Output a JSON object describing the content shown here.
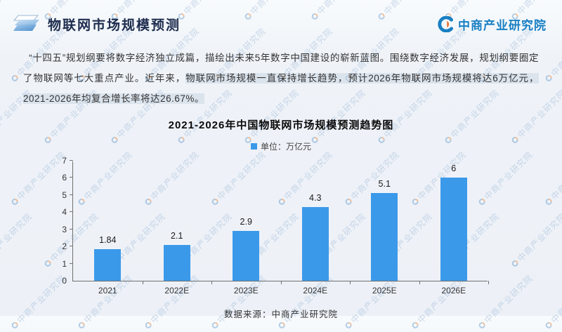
{
  "header": {
    "title": "物联网市场规模预测",
    "brand": "中商产业研究院"
  },
  "paragraph": {
    "lead": "“十四五”规划纲要将数字经济独立成篇，描绘出未来5年数字中国建设的崭新蓝图。围绕数字经济发展，规划纲要圈定了物联网等七大重点产业。近年来，",
    "highlight": "物联网市场规模一直保持增长趋势，预计2026年物联网市场规模将达6万亿元，2021-2026年均复合增长率将达26.67%。"
  },
  "watermark": {
    "text": "中商产业研究院"
  },
  "chart_data": {
    "type": "bar",
    "title": "2021-2026年中国物联网市场规模预测趋势图",
    "legend": "单位：万亿元",
    "categories": [
      "2021",
      "2022E",
      "2023E",
      "2024E",
      "2025E",
      "2026E"
    ],
    "values": [
      1.84,
      2.1,
      2.9,
      4.3,
      5.1,
      6
    ],
    "value_labels": [
      "1.84",
      "2.1",
      "2.9",
      "4.3",
      "5.1",
      "6"
    ],
    "ylabel": "",
    "xlabel": "",
    "ylim": [
      0,
      7
    ],
    "ytick_step": 1,
    "grid": false,
    "legend_position": "top-center",
    "bar_color": "#3b99ea",
    "source": "数据来源：中商产业研究院"
  },
  "colors": {
    "accent_blue": "#3b99ea",
    "brand_blue": "#187fc3",
    "brand_orange": "#e8641b",
    "title_navy": "#1d2c4e"
  }
}
